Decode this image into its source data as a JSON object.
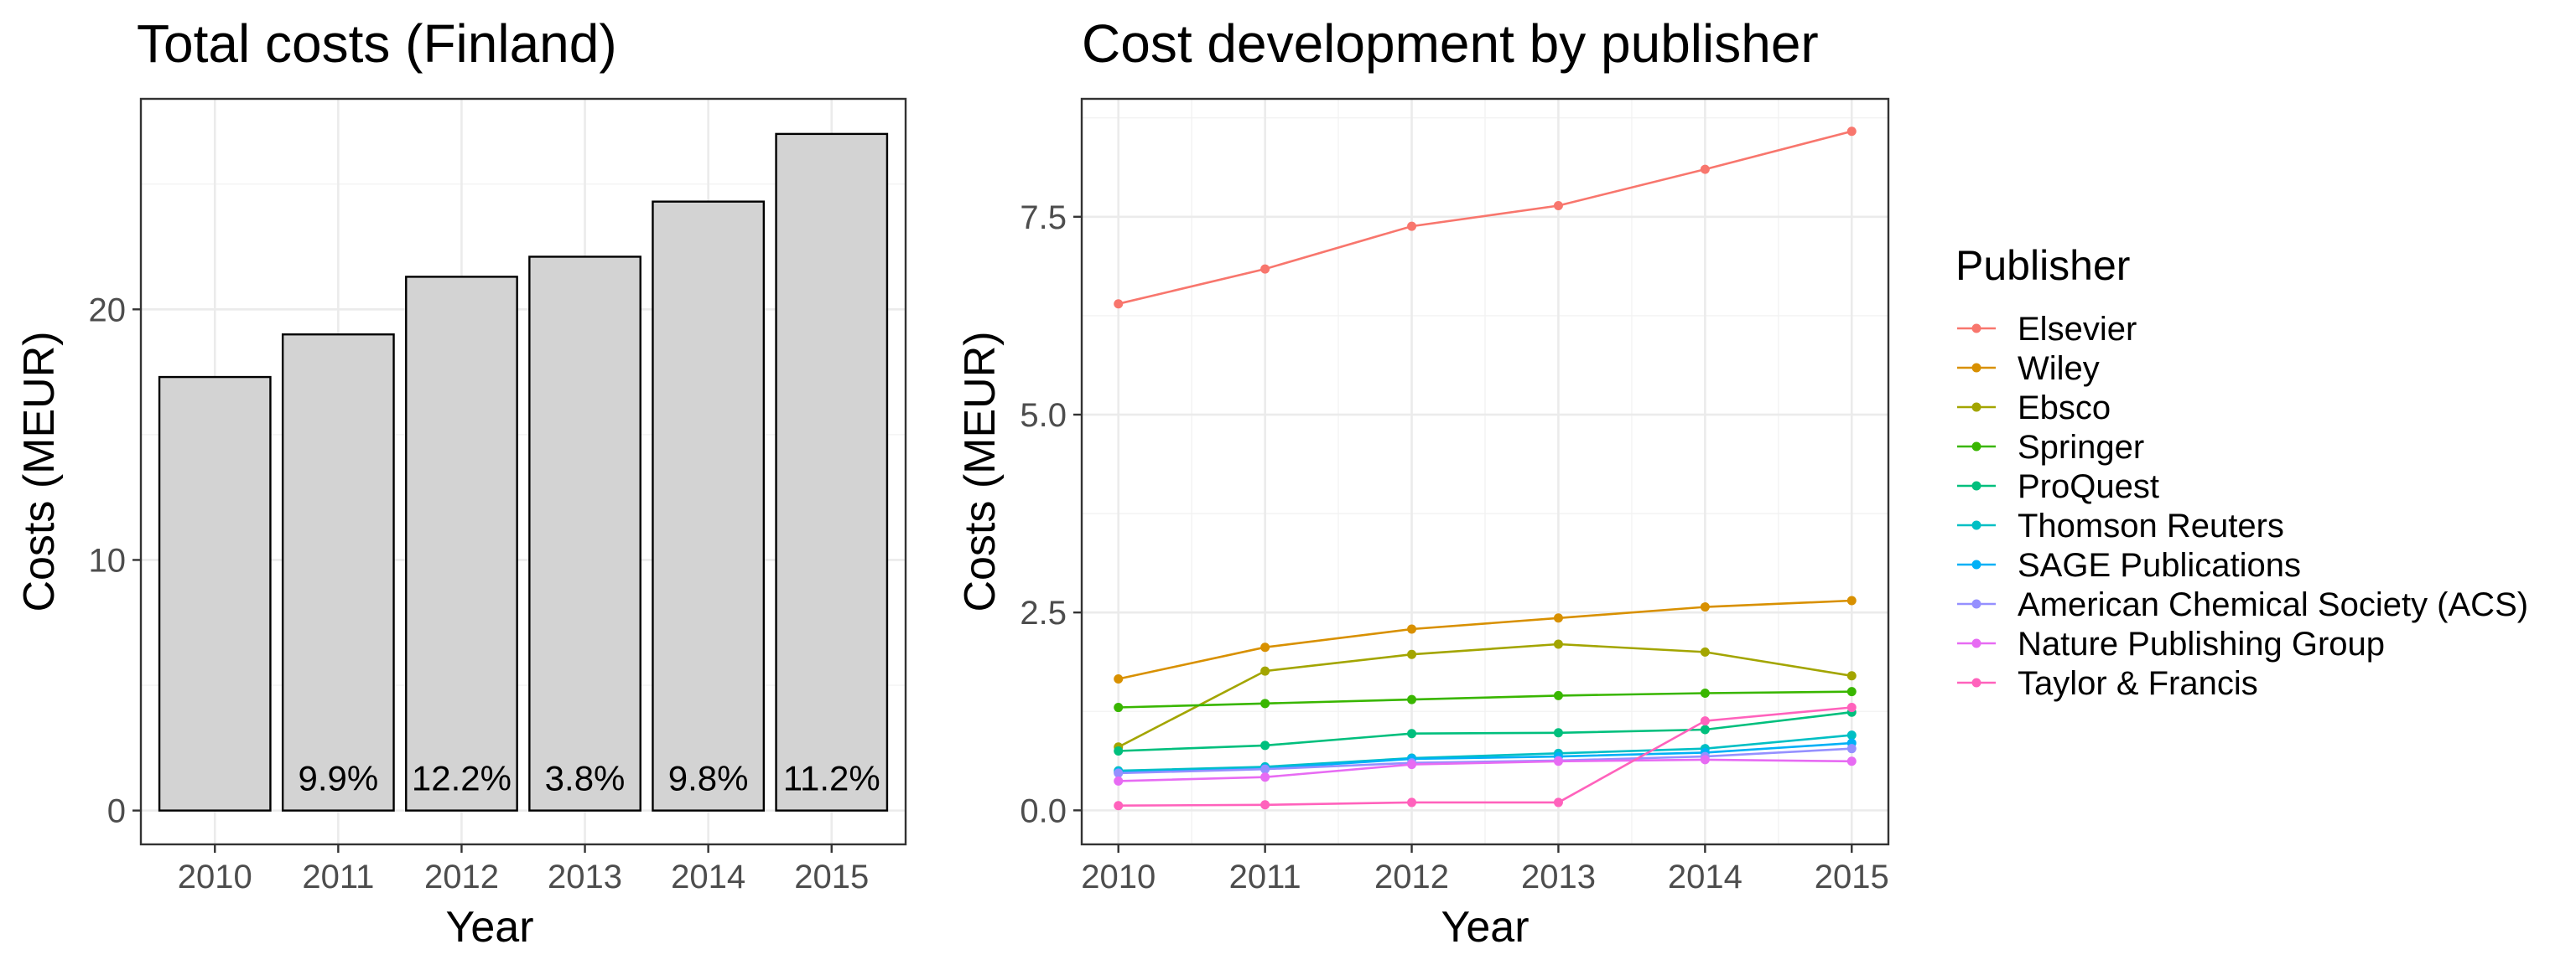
{
  "chart_data": [
    {
      "type": "bar",
      "title": "Total costs (Finland)",
      "xlabel": "Year",
      "ylabel": "Costs (MEUR)",
      "categories": [
        "2010",
        "2011",
        "2012",
        "2013",
        "2014",
        "2015"
      ],
      "values": [
        17.3,
        19.0,
        21.3,
        22.1,
        24.3,
        27.0
      ],
      "bar_labels": [
        "",
        "9.9%",
        "12.2%",
        "3.8%",
        "9.8%",
        "11.2%"
      ],
      "yticks": [
        0,
        10,
        20
      ],
      "ylim": [
        -1.35,
        28.4
      ],
      "grid": true,
      "bar_color": "#d3d3d3"
    },
    {
      "type": "line",
      "title": "Cost development by publisher",
      "xlabel": "Year",
      "ylabel": "Costs (MEUR)",
      "x": [
        2010,
        2011,
        2012,
        2013,
        2014,
        2015
      ],
      "xticks": [
        "2010",
        "2011",
        "2012",
        "2013",
        "2014",
        "2015"
      ],
      "yticks": [
        0,
        2.5,
        5,
        7.5
      ],
      "ytick_labels": [
        "0.0",
        "2.5",
        "5.0",
        "7.5"
      ],
      "xlim": [
        2009.75,
        2015.25
      ],
      "ylim": [
        -0.43,
        8.99
      ],
      "grid": true,
      "legend": {
        "title": "Publisher",
        "position": "right"
      },
      "series": [
        {
          "name": "Elsevier",
          "color": "#F8766D",
          "values": [
            6.4,
            6.84,
            7.38,
            7.64,
            8.1,
            8.58
          ]
        },
        {
          "name": "Wiley",
          "color": "#D89000",
          "values": [
            1.66,
            2.06,
            2.29,
            2.43,
            2.57,
            2.65
          ]
        },
        {
          "name": "Ebsco",
          "color": "#A3A500",
          "values": [
            0.8,
            1.76,
            1.97,
            2.1,
            2.0,
            1.7
          ]
        },
        {
          "name": "Springer",
          "color": "#39B600",
          "values": [
            1.3,
            1.35,
            1.4,
            1.45,
            1.48,
            1.5
          ]
        },
        {
          "name": "ProQuest",
          "color": "#00BF7D",
          "values": [
            0.75,
            0.82,
            0.97,
            0.98,
            1.02,
            1.24
          ]
        },
        {
          "name": "Thomson Reuters",
          "color": "#00BFC4",
          "values": [
            0.5,
            0.55,
            0.66,
            0.72,
            0.78,
            0.95
          ]
        },
        {
          "name": "SAGE Publications",
          "color": "#00B0F6",
          "values": [
            0.48,
            0.53,
            0.65,
            0.68,
            0.73,
            0.85
          ]
        },
        {
          "name": "American Chemical Society (ACS)",
          "color": "#9590FF",
          "values": [
            0.47,
            0.52,
            0.6,
            0.63,
            0.68,
            0.78
          ]
        },
        {
          "name": "Nature Publishing Group",
          "color": "#E76BF3",
          "values": [
            0.37,
            0.42,
            0.58,
            0.62,
            0.64,
            0.62
          ]
        },
        {
          "name": "Taylor & Francis",
          "color": "#FF62BC",
          "values": [
            0.06,
            0.07,
            0.1,
            0.1,
            1.13,
            1.3
          ]
        }
      ]
    }
  ]
}
